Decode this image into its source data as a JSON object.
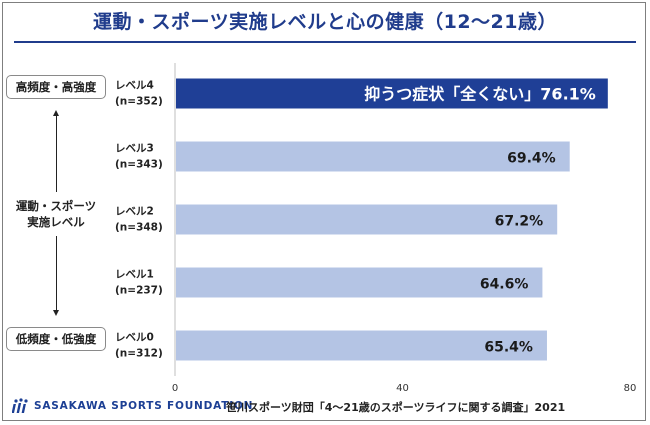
{
  "title": "運動・スポーツ実施レベルと心の健康（12～21歳）",
  "side": {
    "top_box": "高頻度・高強度",
    "middle_label_line1": "運動・スポーツ",
    "middle_label_line2": "実施レベル",
    "bottom_box": "低頻度・低強度"
  },
  "chart_data": {
    "type": "bar",
    "orientation": "horizontal",
    "title": "運動・スポーツ実施レベルと心の健康（12～21歳）",
    "categories": [
      "レベル4",
      "レベル3",
      "レベル2",
      "レベル1",
      "レベル0"
    ],
    "sample_sizes": [
      "(n=352)",
      "(n=343)",
      "(n=348)",
      "(n=237)",
      "(n=312)"
    ],
    "values": [
      76.1,
      69.4,
      67.2,
      64.6,
      65.4
    ],
    "value_labels": [
      "76.1%",
      "69.4%",
      "67.2%",
      "64.6%",
      "65.4%"
    ],
    "highlight_prefix": "抑うつ症状「全くない」",
    "highlight_index": 0,
    "xlim": [
      0,
      80
    ],
    "xticks": [
      0,
      40,
      80
    ],
    "colors": {
      "highlight": "#1f3f96",
      "normal": "#b4c4e4",
      "highlight_text": "#ffffff",
      "normal_text": "#1a1a1a"
    }
  },
  "footer": {
    "logo_text": "SASAKAWA SPORTS FOUNDATION",
    "source": "笹川スポーツ財団「4～21歳のスポーツライフに関する調査」2021"
  }
}
